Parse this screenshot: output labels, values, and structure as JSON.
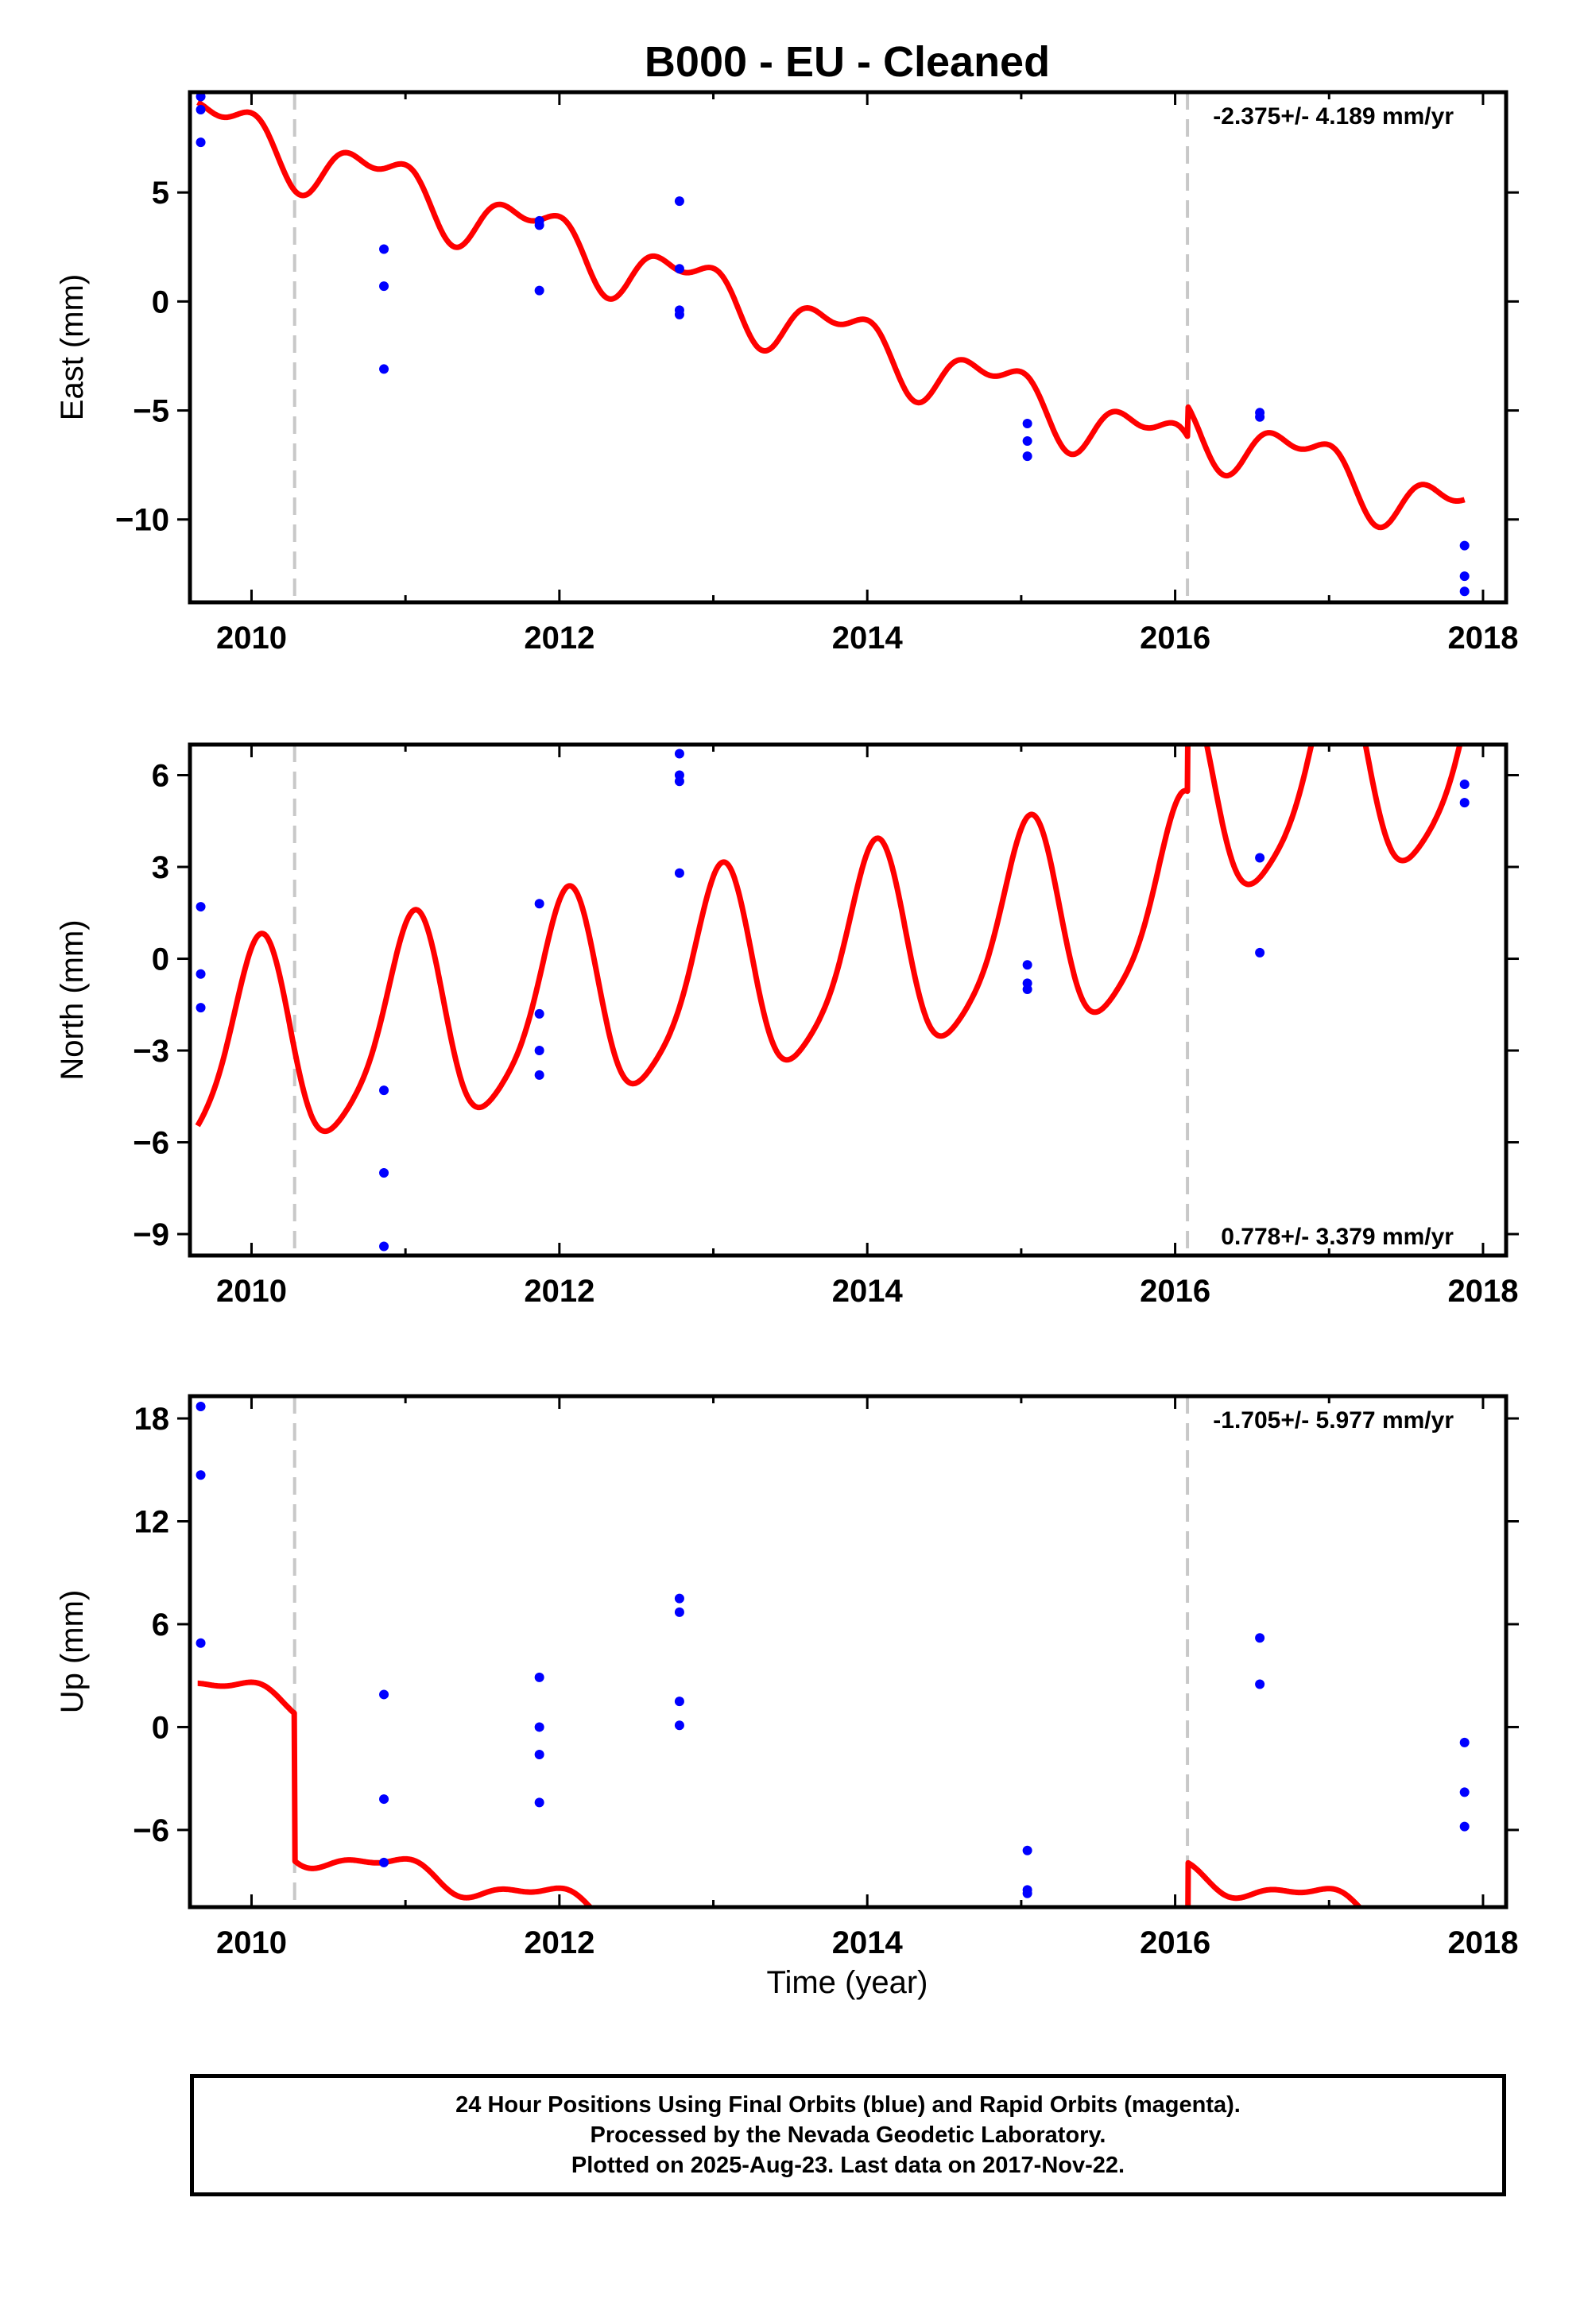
{
  "title": "B000  - EU - Cleaned",
  "colors": {
    "model": "#ff0000",
    "points": "#0000ff",
    "offset_line": "#c8c8c8",
    "frame": "#000000"
  },
  "chart_data": [
    {
      "type": "scatter",
      "ylabel": "East (mm)",
      "xlabel": "",
      "xlim": [
        2009.6,
        2018.15
      ],
      "ylim": [
        -13.8,
        9.6
      ],
      "xticks": [
        "2010",
        "2012",
        "2014",
        "2016",
        "2018"
      ],
      "xtick_values": [
        2010,
        2012,
        2014,
        2016,
        2018
      ],
      "yticks": [
        "5",
        "0",
        "−5",
        "−10"
      ],
      "ytick_values": [
        5,
        0,
        -5,
        -10
      ],
      "rate": "-2.375+/- 4.189 mm/yr",
      "rate_position": "top-right",
      "offsets": [
        2010.28,
        2016.08
      ],
      "model": {
        "rate": -2.375,
        "y0": -1.5,
        "t0": 2013.8,
        "amp1": 1.2,
        "ph1": 2.6,
        "amp2": 0.7,
        "ph2": 0.8,
        "jumps": [
          {
            "t": 2010.28,
            "size": 0.0
          },
          {
            "t": 2016.08,
            "size": 1.4
          }
        ],
        "start": 2009.65,
        "end": 2017.88
      },
      "points": [
        [
          2009.67,
          9.4
        ],
        [
          2009.67,
          8.8
        ],
        [
          2009.67,
          7.3
        ],
        [
          2010.86,
          2.4
        ],
        [
          2010.86,
          0.7
        ],
        [
          2010.86,
          -3.1
        ],
        [
          2011.87,
          3.7
        ],
        [
          2011.87,
          3.5
        ],
        [
          2011.87,
          0.5
        ],
        [
          2012.78,
          4.6
        ],
        [
          2012.78,
          1.5
        ],
        [
          2012.78,
          -0.4
        ],
        [
          2012.78,
          -0.6
        ],
        [
          2015.04,
          -5.6
        ],
        [
          2015.04,
          -6.4
        ],
        [
          2015.04,
          -7.1
        ],
        [
          2016.55,
          -5.1
        ],
        [
          2016.55,
          -5.3
        ],
        [
          2017.88,
          -11.2
        ],
        [
          2017.88,
          -12.6
        ],
        [
          2017.88,
          -13.3
        ]
      ]
    },
    {
      "type": "scatter",
      "ylabel": "North (mm)",
      "xlabel": "",
      "xlim": [
        2009.6,
        2018.15
      ],
      "ylim": [
        -9.7,
        7.0
      ],
      "xticks": [
        "2010",
        "2012",
        "2014",
        "2016",
        "2018"
      ],
      "xtick_values": [
        2010,
        2012,
        2014,
        2016,
        2018
      ],
      "yticks": [
        "6",
        "3",
        "0",
        "−3",
        "−6",
        "−9"
      ],
      "ytick_values": [
        6,
        3,
        0,
        -3,
        -6,
        -9
      ],
      "rate": "0.778+/- 3.379 mm/yr",
      "rate_position": "bottom-right",
      "offsets": [
        2010.28,
        2016.08
      ],
      "model": {
        "rate": 0.778,
        "y0": -0.1,
        "t0": 2013.8,
        "amp1": 3.3,
        "ph1": 1.3,
        "amp2": 0.6,
        "ph2": 0.4,
        "jumps": [
          {
            "t": 2010.28,
            "size": 0.0
          },
          {
            "t": 2016.08,
            "size": 3.4
          }
        ],
        "start": 2009.65,
        "end": 2017.88
      },
      "points": [
        [
          2009.67,
          1.7
        ],
        [
          2009.67,
          -0.5
        ],
        [
          2009.67,
          -1.6
        ],
        [
          2010.86,
          -4.3
        ],
        [
          2010.86,
          -7.0
        ],
        [
          2010.86,
          -9.4
        ],
        [
          2011.87,
          1.8
        ],
        [
          2011.87,
          -1.8
        ],
        [
          2011.87,
          -3.0
        ],
        [
          2011.87,
          -3.8
        ],
        [
          2012.78,
          6.7
        ],
        [
          2012.78,
          6.0
        ],
        [
          2012.78,
          5.8
        ],
        [
          2012.78,
          2.8
        ],
        [
          2015.04,
          -0.2
        ],
        [
          2015.04,
          -0.8
        ],
        [
          2015.04,
          -1.0
        ],
        [
          2016.55,
          3.3
        ],
        [
          2016.55,
          0.2
        ],
        [
          2017.88,
          5.7
        ],
        [
          2017.88,
          5.1
        ]
      ]
    },
    {
      "type": "scatter",
      "ylabel": "Up (mm)",
      "xlabel": "Time (year)",
      "xlim": [
        2009.6,
        2018.15
      ],
      "ylim": [
        -10.5,
        19.3
      ],
      "xticks": [
        "2010",
        "2012",
        "2014",
        "2016",
        "2018"
      ],
      "xtick_values": [
        2010,
        2012,
        2014,
        2016,
        2018
      ],
      "yticks": [
        "18",
        "12",
        "6",
        "0",
        "−6"
      ],
      "ytick_values": [
        18,
        12,
        6,
        0,
        -6
      ],
      "rate": "-1.705+/- 5.977 mm/yr",
      "rate_position": "top-right",
      "offsets": [
        2010.28,
        2016.08
      ],
      "model": {
        "rate": -1.705,
        "y0": -4.6,
        "t0": 2013.8,
        "amp1": 0.65,
        "ph1": 2.0,
        "amp2": 0.3,
        "ph2": 0.5,
        "jumps": [
          {
            "t": 2010.28,
            "size": -8.6
          },
          {
            "t": 2016.08,
            "size": 8.5
          }
        ],
        "start": 2009.65,
        "end": 2017.88
      },
      "points": [
        [
          2009.67,
          18.7
        ],
        [
          2009.67,
          14.7
        ],
        [
          2009.67,
          4.9
        ],
        [
          2010.86,
          1.9
        ],
        [
          2010.86,
          -4.2
        ],
        [
          2010.86,
          -7.9
        ],
        [
          2011.87,
          2.9
        ],
        [
          2011.87,
          0.0
        ],
        [
          2011.87,
          -1.6
        ],
        [
          2011.87,
          -4.4
        ],
        [
          2012.78,
          7.5
        ],
        [
          2012.78,
          6.7
        ],
        [
          2012.78,
          1.5
        ],
        [
          2012.78,
          0.1
        ],
        [
          2015.04,
          -7.2
        ],
        [
          2015.04,
          -9.5
        ],
        [
          2015.04,
          -9.7
        ],
        [
          2016.55,
          5.2
        ],
        [
          2016.55,
          2.5
        ],
        [
          2017.88,
          -0.9
        ],
        [
          2017.88,
          -3.8
        ],
        [
          2017.88,
          -5.8
        ]
      ]
    }
  ],
  "footer": {
    "line1": "24 Hour Positions Using Final Orbits (blue) and Rapid Orbits (magenta).",
    "line2": "Processed by the Nevada Geodetic Laboratory.",
    "line3": "Plotted on 2025-Aug-23. Last data on 2017-Nov-22."
  }
}
